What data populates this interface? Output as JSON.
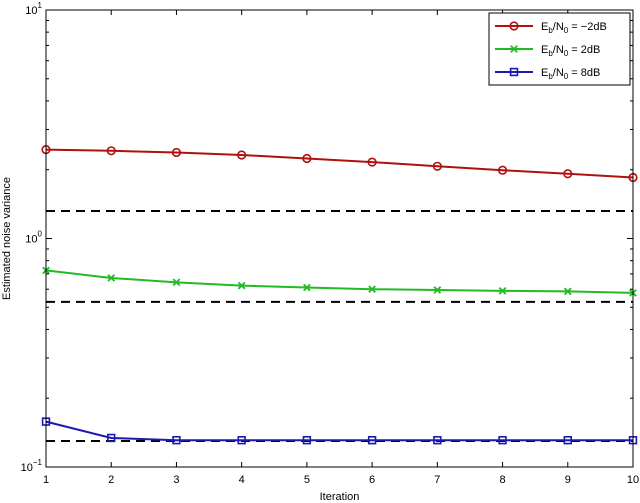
{
  "chart_data": {
    "type": "line",
    "title": "",
    "xlabel": "Iteration",
    "ylabel": "Estimated noise variance",
    "yscale": "log",
    "xlim": [
      1,
      10
    ],
    "ylim": [
      0.1,
      10
    ],
    "grid": false,
    "legend_position": "top-right",
    "x": [
      1,
      2,
      3,
      4,
      5,
      6,
      7,
      8,
      9,
      10
    ],
    "x_ticks": [
      "1",
      "2",
      "3",
      "4",
      "5",
      "6",
      "7",
      "8",
      "9",
      "10"
    ],
    "y_ticks": [
      {
        "value": 0.1,
        "base": "10",
        "exp": "−1"
      },
      {
        "value": 1,
        "base": "10",
        "exp": "0"
      },
      {
        "value": 10,
        "base": "10",
        "exp": "1"
      }
    ],
    "series": [
      {
        "legend": {
          "E": "E",
          "b": "b",
          "N": "/N",
          "zero": "0",
          "rest": " = −2dB"
        },
        "color": "#b01010",
        "marker": "circle",
        "values": [
          2.45,
          2.42,
          2.38,
          2.32,
          2.24,
          2.16,
          2.07,
          1.99,
          1.92,
          1.85
        ]
      },
      {
        "legend": {
          "E": "E",
          "b": "b",
          "N": "/N",
          "zero": "0",
          "rest": " = 2dB"
        },
        "color": "#22bb22",
        "marker": "x",
        "values": [
          0.725,
          0.672,
          0.643,
          0.622,
          0.61,
          0.6,
          0.595,
          0.59,
          0.587,
          0.578
        ]
      },
      {
        "legend": {
          "E": "E",
          "b": "b",
          "N": "/N",
          "zero": "0",
          "rest": " = 8dB"
        },
        "color": "#1a1ab0",
        "marker": "square",
        "values": [
          0.158,
          0.134,
          0.131,
          0.131,
          0.131,
          0.131,
          0.131,
          0.131,
          0.131,
          0.131
        ]
      }
    ],
    "reference_lines": [
      1.32,
      0.528,
      0.13
    ],
    "reference_color": "#000000"
  }
}
